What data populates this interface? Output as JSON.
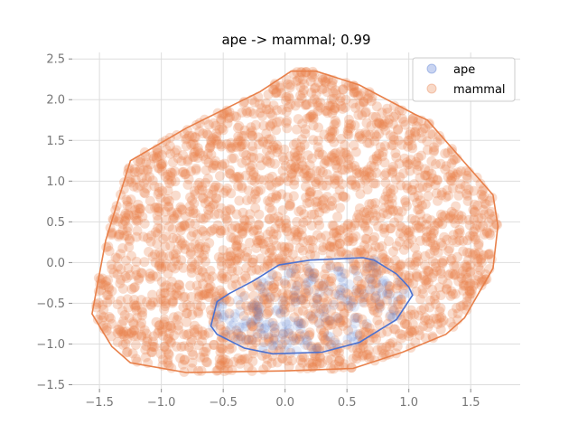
{
  "chart_data": {
    "type": "scatter",
    "title": "ape -> mammal; 0.99",
    "xlabel": "",
    "ylabel": "",
    "xlim": [
      -1.72,
      1.9
    ],
    "ylim": [
      -1.55,
      2.58
    ],
    "xticks": [
      -1.5,
      -1.0,
      -0.5,
      0.0,
      0.5,
      1.0,
      1.5
    ],
    "xtick_labels": [
      "−1.5",
      "−1.0",
      "−0.5",
      "0.0",
      "0.5",
      "1.0",
      "1.5"
    ],
    "yticks": [
      -1.5,
      -1.0,
      -0.5,
      0.0,
      0.5,
      1.0,
      1.5,
      2.0,
      2.5
    ],
    "ytick_labels": [
      "−1.5",
      "−1.0",
      "−0.5",
      "0.0",
      "0.5",
      "1.0",
      "1.5",
      "2.0",
      "2.5"
    ],
    "grid": true,
    "legend_position": "top-right",
    "series": [
      {
        "name": "ape",
        "color": "#4c72d0",
        "hull": [
          [
            -0.05,
            -0.03
          ],
          [
            0.2,
            0.03
          ],
          [
            0.63,
            0.06
          ],
          [
            0.72,
            0.03
          ],
          [
            0.9,
            -0.14
          ],
          [
            1.0,
            -0.3
          ],
          [
            1.03,
            -0.4
          ],
          [
            0.9,
            -0.7
          ],
          [
            0.6,
            -0.98
          ],
          [
            0.3,
            -1.1
          ],
          [
            -0.1,
            -1.12
          ],
          [
            -0.33,
            -1.05
          ],
          [
            -0.55,
            -0.88
          ],
          [
            -0.6,
            -0.78
          ],
          [
            -0.55,
            -0.48
          ],
          [
            -0.45,
            -0.38
          ],
          [
            -0.25,
            -0.22
          ]
        ]
      },
      {
        "name": "mammal",
        "color": "#e8804a",
        "hull": [
          [
            0.05,
            2.35
          ],
          [
            0.25,
            2.35
          ],
          [
            0.6,
            2.18
          ],
          [
            1.05,
            1.82
          ],
          [
            1.15,
            1.75
          ],
          [
            1.68,
            0.83
          ],
          [
            1.72,
            0.45
          ],
          [
            1.68,
            -0.07
          ],
          [
            1.45,
            -0.68
          ],
          [
            1.3,
            -0.88
          ],
          [
            0.95,
            -1.1
          ],
          [
            0.55,
            -1.3
          ],
          [
            0.0,
            -1.33
          ],
          [
            -0.8,
            -1.35
          ],
          [
            -1.25,
            -1.23
          ],
          [
            -1.4,
            -1.03
          ],
          [
            -1.56,
            -0.63
          ],
          [
            -1.45,
            0.27
          ],
          [
            -1.25,
            1.25
          ],
          [
            -0.8,
            1.65
          ],
          [
            -0.4,
            1.95
          ],
          [
            -0.2,
            2.1
          ]
        ]
      }
    ]
  }
}
